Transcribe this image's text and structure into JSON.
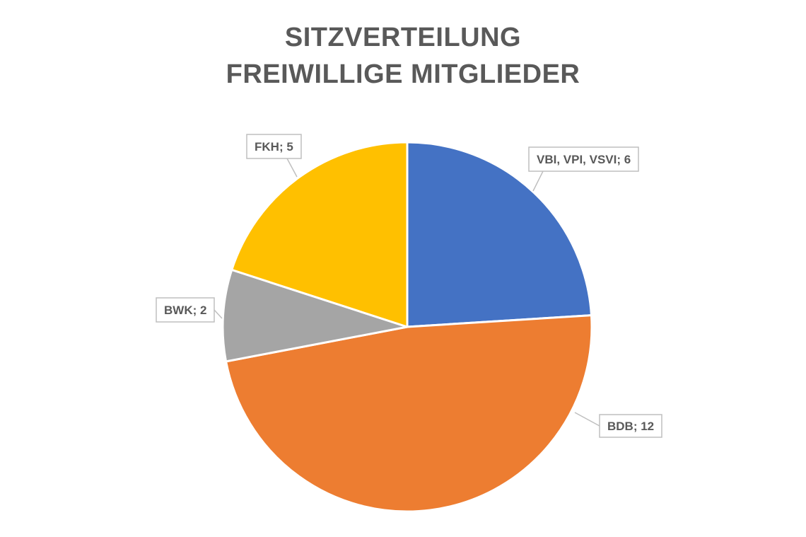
{
  "chart_data": {
    "type": "pie",
    "title": [
      "SITZVERTEILUNG",
      "FREIWILLIGE MITGLIEDER"
    ],
    "legend": "none",
    "slices": [
      {
        "label": "VBI, VPI, VSVI",
        "value": 6,
        "display": "VBI, VPI, VSVI; 6",
        "color": "#4472C4"
      },
      {
        "label": "BDB",
        "value": 12,
        "display": "BDB; 12",
        "color": "#ED7D31"
      },
      {
        "label": "BWK",
        "value": 2,
        "display": "BWK; 2",
        "color": "#A5A5A5"
      },
      {
        "label": "FKH",
        "value": 5,
        "display": "FKH; 5",
        "color": "#FFC000"
      }
    ]
  },
  "colors": {
    "title": "#595959",
    "label_text": "#595959",
    "label_border": "#BFBFBF",
    "slice_border": "#FFFFFF"
  }
}
